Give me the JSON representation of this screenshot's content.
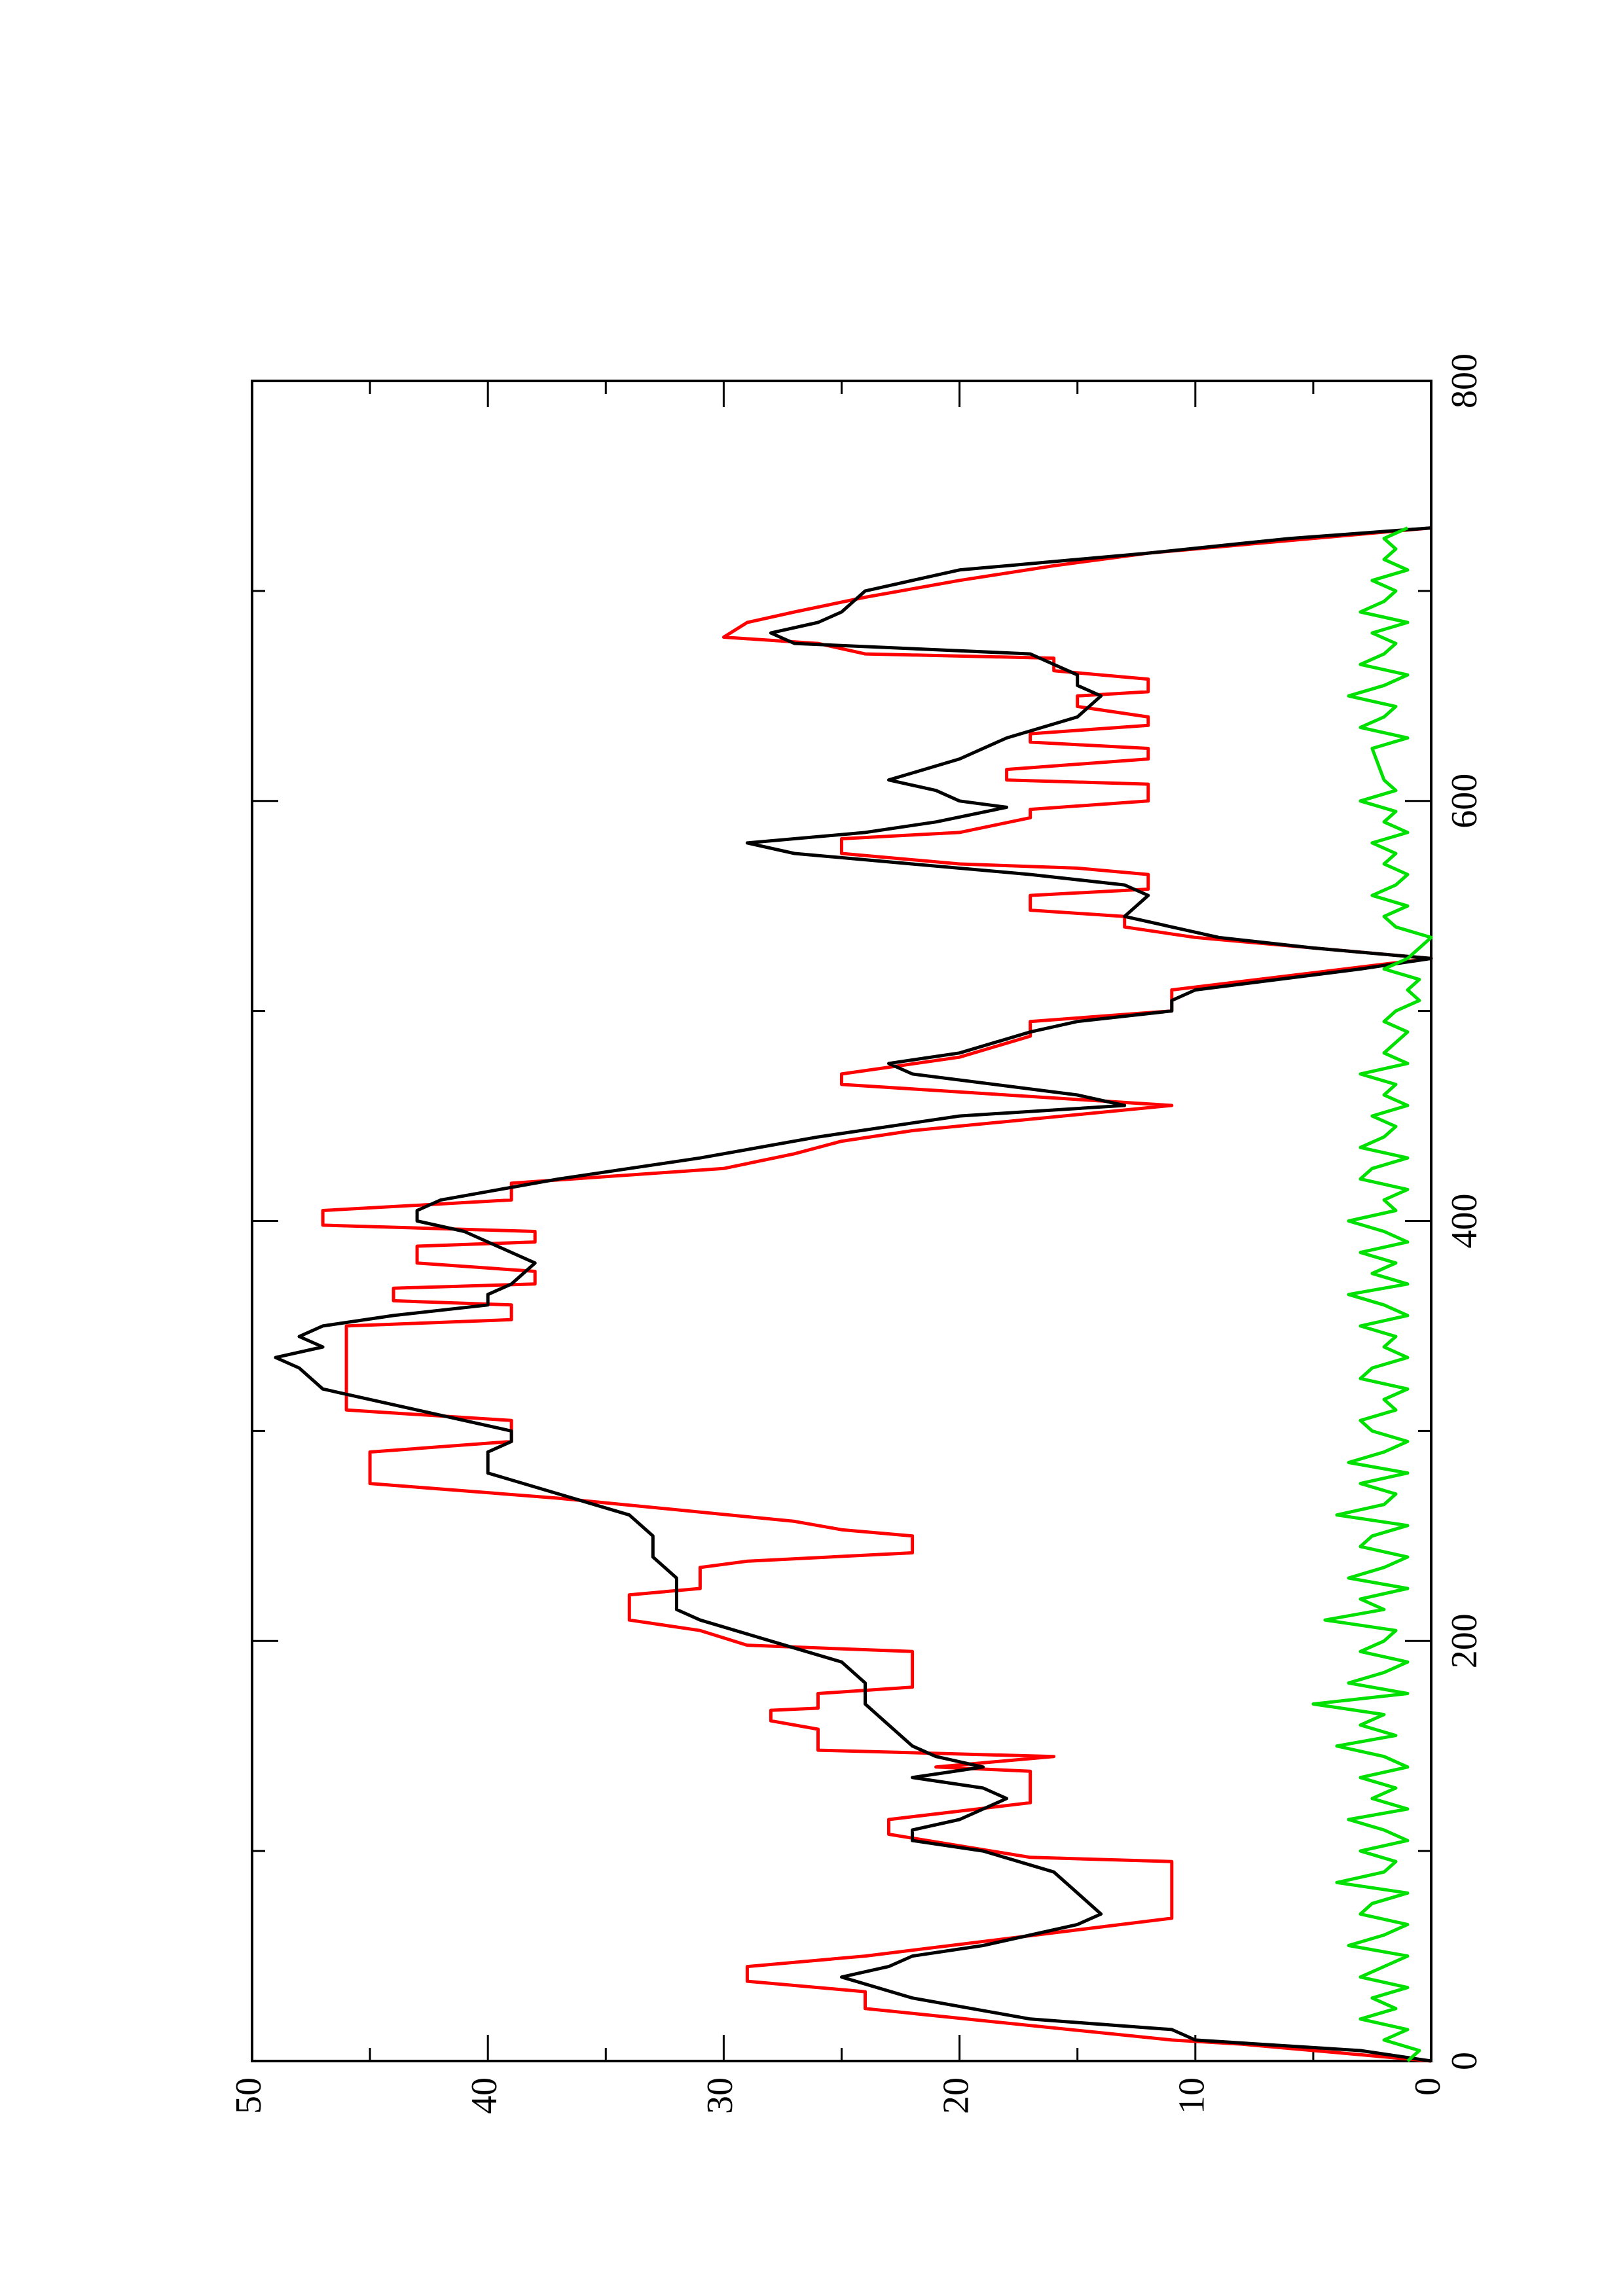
{
  "chart_data": {
    "type": "line",
    "xlim": [
      0,
      800
    ],
    "xticks": [
      0,
      200,
      400,
      600,
      800
    ],
    "xminorticks": [
      100,
      300,
      500,
      700
    ],
    "ylim": [
      0,
      50
    ],
    "yticks": [
      0,
      10,
      20,
      30,
      40,
      50
    ],
    "yminorticks": [
      5,
      15,
      25,
      35,
      45
    ],
    "rotated": true,
    "series": [
      {
        "color": "#ff0000",
        "x": [
          0,
          8,
          10,
          25,
          33,
          38,
          45,
          50,
          68,
          95,
          97,
          108,
          115,
          123,
          138,
          140,
          145,
          148,
          158,
          162,
          167,
          168,
          175,
          178,
          195,
          198,
          205,
          210,
          222,
          225,
          235,
          238,
          242,
          250,
          253,
          257,
          268,
          275,
          290,
          295,
          305,
          310,
          350,
          353,
          360,
          362,
          368,
          370,
          376,
          380,
          388,
          390,
          395,
          398,
          405,
          410,
          418,
          425,
          432,
          438,
          443,
          455,
          465,
          470,
          478,
          488,
          495,
          500,
          510,
          525,
          535,
          540,
          545,
          548,
          555,
          558,
          565,
          568,
          570,
          575,
          582,
          585,
          592,
          596,
          600,
          608,
          610,
          615,
          620,
          625,
          628,
          632,
          636,
          640,
          645,
          650,
          652,
          658,
          662,
          668,
          670,
          675,
          678,
          685,
          690,
          697,
          705,
          712,
          718,
          720,
          730
        ],
        "values": [
          0,
          8,
          11,
          24,
          24,
          29,
          29,
          24,
          11,
          11,
          17,
          23,
          23,
          17,
          17,
          21,
          16,
          26,
          26,
          28,
          28,
          26,
          26,
          22,
          22,
          29,
          31,
          34,
          34,
          31,
          31,
          29,
          22,
          22,
          25,
          27,
          37,
          45,
          45,
          39,
          39,
          46,
          46,
          39,
          39,
          44,
          44,
          38,
          38,
          43,
          43,
          38,
          38,
          47,
          47,
          39,
          39,
          30,
          27,
          25,
          22,
          11,
          25,
          25,
          20,
          17,
          17,
          11,
          11,
          0,
          10,
          13,
          13,
          17,
          17,
          12,
          12,
          15,
          20,
          25,
          25,
          20,
          17,
          17,
          12,
          12,
          18,
          18,
          12,
          12,
          17,
          17,
          12,
          12,
          15,
          15,
          12,
          12,
          16,
          16,
          24,
          26,
          30,
          29,
          27,
          24,
          20,
          16,
          12,
          10,
          0
        ]
      },
      {
        "color": "#000000",
        "x": [
          0,
          5,
          10,
          15,
          20,
          30,
          40,
          45,
          50,
          55,
          60,
          65,
          70,
          80,
          90,
          100,
          105,
          110,
          115,
          125,
          130,
          135,
          140,
          145,
          150,
          160,
          170,
          180,
          190,
          200,
          210,
          215,
          220,
          230,
          240,
          245,
          250,
          260,
          270,
          280,
          290,
          295,
          300,
          310,
          320,
          330,
          335,
          340,
          345,
          350,
          355,
          360,
          365,
          370,
          380,
          385,
          390,
          395,
          400,
          405,
          410,
          420,
          430,
          440,
          450,
          455,
          460,
          470,
          475,
          480,
          490,
          495,
          500,
          505,
          510,
          520,
          525,
          530,
          535,
          545,
          555,
          560,
          565,
          575,
          580,
          585,
          590,
          597,
          600,
          605,
          610,
          620,
          630,
          640,
          650,
          655,
          660,
          670,
          675,
          680,
          685,
          690,
          700,
          710,
          718,
          725,
          730
        ],
        "values": [
          0,
          3,
          10,
          11,
          17,
          22,
          25,
          23,
          22,
          19,
          17,
          15,
          14,
          15,
          16,
          19,
          22,
          22,
          20,
          18,
          19,
          22,
          19,
          21,
          22,
          23,
          24,
          24,
          25,
          28,
          31,
          32,
          32,
          32,
          33,
          33,
          33,
          34,
          37,
          40,
          40,
          39,
          39,
          43,
          47,
          48,
          49,
          47,
          48,
          47,
          44,
          40,
          40,
          39,
          38,
          39,
          40,
          41,
          43,
          43,
          42,
          37,
          31,
          26,
          20,
          13,
          15,
          22,
          23,
          20,
          17,
          15,
          11,
          11,
          10,
          3,
          0,
          5,
          9,
          13,
          12,
          13,
          17,
          27,
          29,
          24,
          21,
          18,
          20,
          21,
          23,
          20,
          18,
          15,
          14,
          15,
          15,
          17,
          27,
          28,
          26,
          25,
          24,
          20,
          12,
          6,
          0
        ]
      },
      {
        "color": "#00e000",
        "x": [
          0,
          5,
          10,
          15,
          20,
          25,
          30,
          35,
          40,
          45,
          50,
          55,
          60,
          65,
          70,
          75,
          80,
          85,
          90,
          95,
          100,
          105,
          110,
          115,
          120,
          125,
          130,
          135,
          140,
          145,
          150,
          155,
          160,
          165,
          170,
          175,
          180,
          185,
          190,
          195,
          200,
          205,
          210,
          215,
          220,
          225,
          230,
          235,
          240,
          245,
          250,
          255,
          260,
          265,
          270,
          275,
          280,
          285,
          290,
          295,
          300,
          305,
          310,
          315,
          320,
          325,
          330,
          335,
          340,
          345,
          350,
          355,
          360,
          365,
          370,
          375,
          380,
          385,
          390,
          395,
          400,
          405,
          410,
          415,
          420,
          425,
          430,
          435,
          440,
          445,
          450,
          455,
          460,
          465,
          470,
          475,
          480,
          485,
          490,
          495,
          500,
          505,
          510,
          515,
          520,
          525,
          530,
          535,
          540,
          545,
          550,
          555,
          560,
          565,
          570,
          575,
          580,
          585,
          590,
          595,
          600,
          605,
          610,
          625,
          630,
          635,
          640,
          645,
          650,
          655,
          660,
          665,
          670,
          675,
          680,
          685,
          690,
          695,
          700,
          705,
          710,
          715,
          720,
          725,
          730
        ],
        "values": [
          1,
          0.5,
          2,
          1,
          3,
          1.5,
          2.5,
          1,
          3,
          2,
          1,
          3.5,
          2,
          1,
          3,
          2.5,
          1,
          4,
          2,
          1.5,
          3,
          1,
          2,
          3.5,
          1,
          2.5,
          1.5,
          3,
          1,
          2,
          4,
          1.5,
          3,
          2,
          5,
          1,
          3.5,
          2,
          1,
          3,
          2,
          1.5,
          4.5,
          2,
          3,
          1,
          3.5,
          2,
          1,
          3,
          2.5,
          1,
          4,
          2,
          1.5,
          3,
          1,
          3.5,
          2,
          1,
          2.5,
          3,
          1.5,
          2,
          1,
          3,
          2.5,
          1,
          2,
          1.5,
          3,
          1,
          2,
          3.5,
          1,
          2.5,
          1.5,
          3,
          1,
          2,
          3.5,
          1.5,
          2,
          1,
          3,
          2.5,
          1,
          3,
          2,
          1.5,
          2.5,
          1,
          2,
          1.5,
          3,
          1,
          2,
          1.5,
          1,
          2,
          1.5,
          0.5,
          1,
          0.5,
          2,
          1,
          0.5,
          0,
          1.5,
          2,
          1,
          2.5,
          1.5,
          1,
          2,
          1.5,
          2.5,
          1,
          2,
          1.5,
          3,
          1.5,
          2,
          2.5,
          1,
          3,
          2,
          1.5,
          3.5,
          2,
          1,
          3,
          2,
          1.5,
          2.5,
          1,
          3,
          2,
          1.5,
          2.5,
          1,
          2,
          1.5,
          2,
          1
        ]
      }
    ]
  }
}
